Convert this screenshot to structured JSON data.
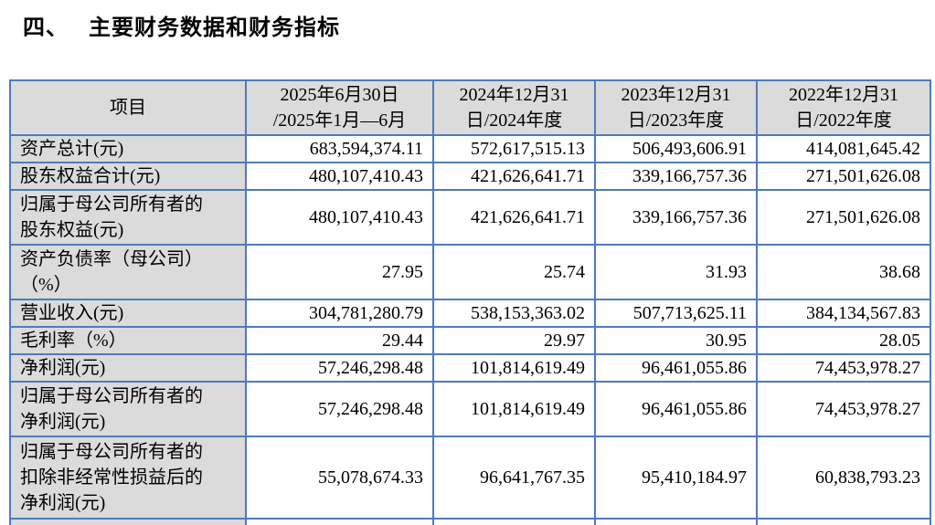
{
  "title": {
    "number": "四、",
    "text": "主要财务数据和财务指标"
  },
  "table": {
    "header": {
      "item_label": "项目",
      "periods": [
        "2025年6月30日\n/2025年1月—6月",
        "2024年12月31\n日/2024年度",
        "2023年12月31\n日/2023年度",
        "2022年12月31\n日/2022年度"
      ]
    },
    "rows": [
      {
        "label": "资产总计(元)",
        "values": [
          "683,594,374.11",
          "572,617,515.13",
          "506,493,606.91",
          "414,081,645.42"
        ]
      },
      {
        "label": "股东权益合计(元)",
        "values": [
          "480,107,410.43",
          "421,626,641.71",
          "339,166,757.36",
          "271,501,626.08"
        ]
      },
      {
        "label": "归属于母公司所有者的\n股东权益(元)",
        "values": [
          "480,107,410.43",
          "421,626,641.71",
          "339,166,757.36",
          "271,501,626.08"
        ]
      },
      {
        "label": "资产负债率（母公司）\n（%）",
        "values": [
          "27.95",
          "25.74",
          "31.93",
          "38.68"
        ]
      },
      {
        "label": "营业收入(元)",
        "values": [
          "304,781,280.79",
          "538,153,363.02",
          "507,713,625.11",
          "384,134,567.83"
        ]
      },
      {
        "label": "毛利率（%）",
        "values": [
          "29.44",
          "29.97",
          "30.95",
          "28.05"
        ]
      },
      {
        "label": "净利润(元)",
        "values": [
          "57,246,298.48",
          "101,814,619.49",
          "96,461,055.86",
          "74,453,978.27"
        ]
      },
      {
        "label": "归属于母公司所有者的\n净利润(元)",
        "values": [
          "57,246,298.48",
          "101,814,619.49",
          "96,461,055.86",
          "74,453,978.27"
        ]
      },
      {
        "label": "归属于母公司所有者的\n扣除非经常性损益后的\n净利润(元)",
        "values": [
          "55,078,674.33",
          "96,641,767.35",
          "95,410,184.97",
          "60,838,793.23"
        ]
      }
    ],
    "colors": {
      "border": "#4E7CB8",
      "header_bg": "#DBDBDB",
      "label_bg": "#DBDBDB"
    }
  }
}
